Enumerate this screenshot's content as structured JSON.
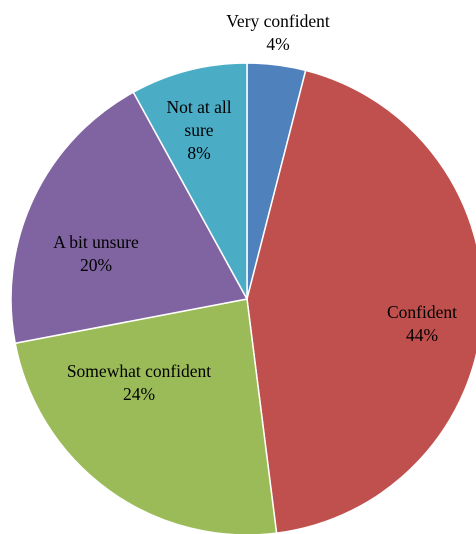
{
  "chart_data": {
    "type": "pie",
    "title": "",
    "slices": [
      {
        "label": "Very confident",
        "label_lines": [
          "Very confident"
        ],
        "value": 4,
        "value_label": "4%",
        "color": "#4f81bd"
      },
      {
        "label": "Confident",
        "label_lines": [
          "Confident"
        ],
        "value": 44,
        "value_label": "44%",
        "color": "#c0504d"
      },
      {
        "label": "Somewhat confident",
        "label_lines": [
          "Somewhat confident"
        ],
        "value": 24,
        "value_label": "24%",
        "color": "#9bbb59"
      },
      {
        "label": "A bit unsure",
        "label_lines": [
          "A bit unsure"
        ],
        "value": 20,
        "value_label": "20%",
        "color": "#8064a2"
      },
      {
        "label": "Not at all sure",
        "label_lines": [
          "Not at all",
          "sure"
        ],
        "value": 8,
        "value_label": "8%",
        "color": "#4bacc6"
      }
    ]
  }
}
